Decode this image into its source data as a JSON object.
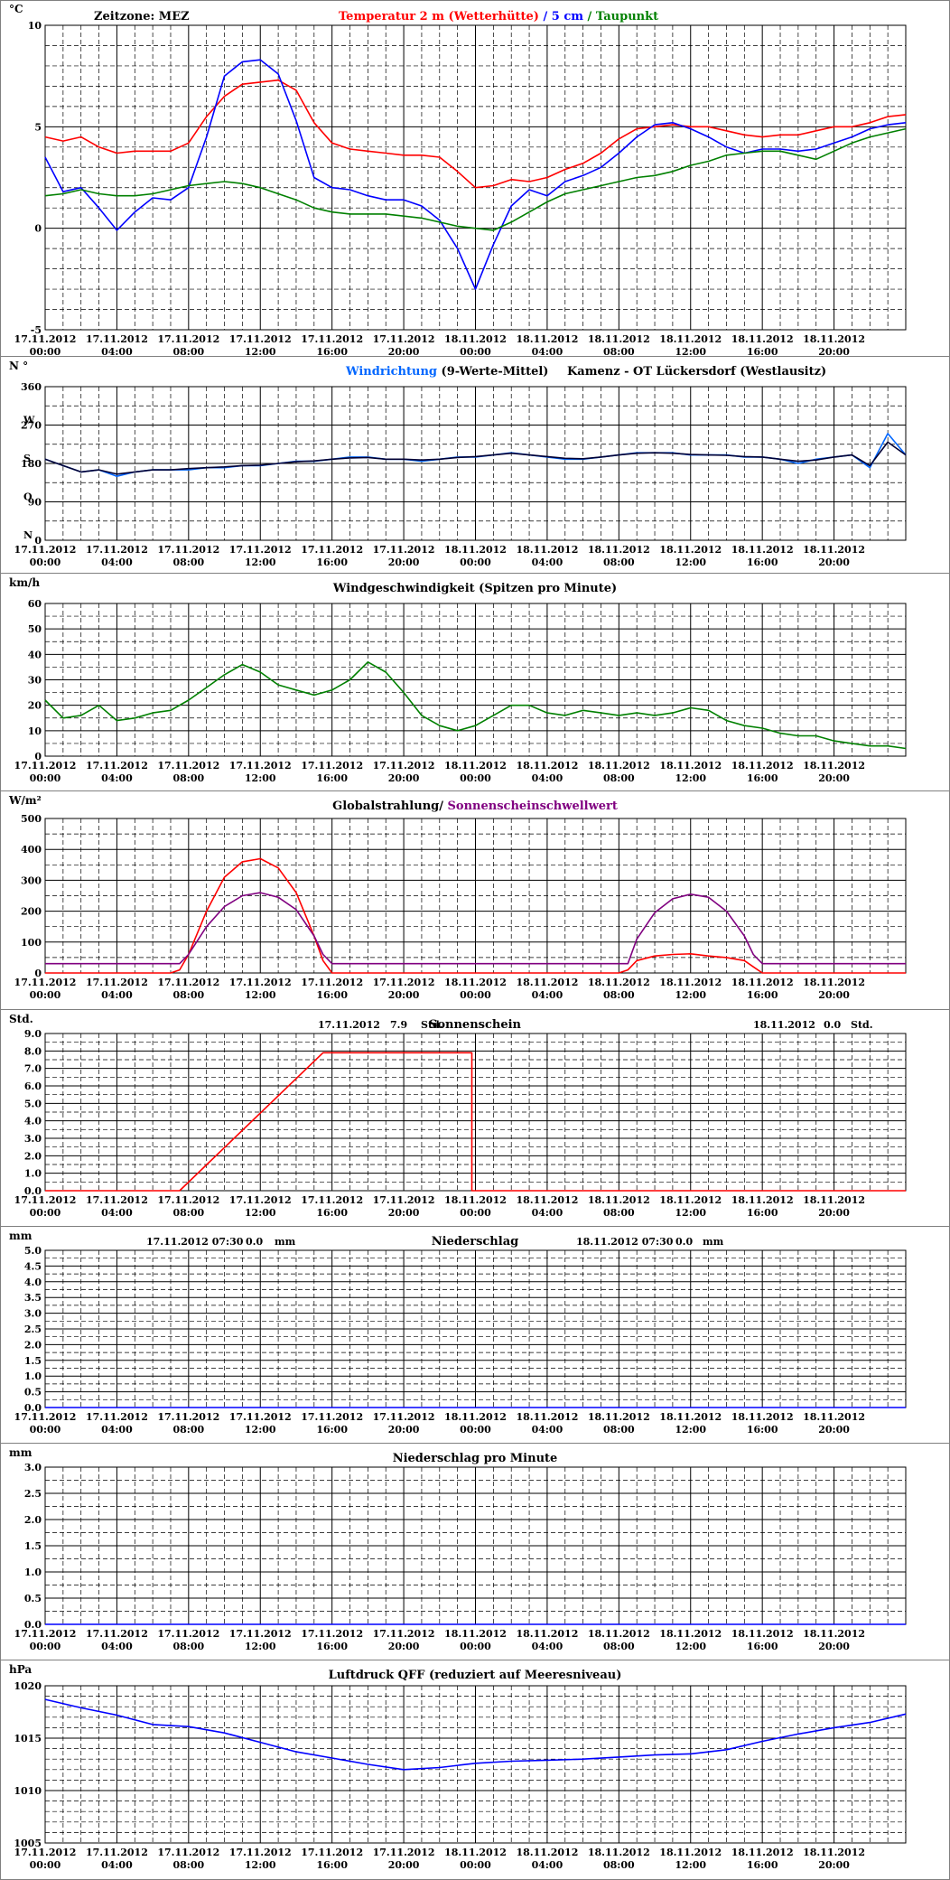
{
  "time_ticks": [
    [
      "17.11.2012",
      "00:00"
    ],
    [
      "17.11.2012",
      "04:00"
    ],
    [
      "17.11.2012",
      "08:00"
    ],
    [
      "17.11.2012",
      "12:00"
    ],
    [
      "17.11.2012",
      "16:00"
    ],
    [
      "17.11.2012",
      "20:00"
    ],
    [
      "18.11.2012",
      "00:00"
    ],
    [
      "18.11.2012",
      "04:00"
    ],
    [
      "18.11.2012",
      "08:00"
    ],
    [
      "18.11.2012",
      "12:00"
    ],
    [
      "18.11.2012",
      "16:00"
    ],
    [
      "18.11.2012",
      "20:00"
    ]
  ],
  "chart_data": [
    {
      "id": "temperature",
      "type": "line",
      "unit": "°C",
      "header_left": "Zeitzone: MEZ",
      "title_parts": [
        {
          "text": "Temperatur 2 m (Wetterhütte)",
          "color": "#ff0000"
        },
        {
          "text": "  /  ",
          "color": "#0000ff"
        },
        {
          "text": "5 cm",
          "color": "#0000ff"
        },
        {
          "text": " / ",
          "color": "#008000"
        },
        {
          "text": "Taupunkt",
          "color": "#008000"
        }
      ],
      "ylim": [
        -5,
        10
      ],
      "y_ticks": [
        -5,
        0,
        5,
        10
      ],
      "x_hours_range": [
        0,
        48
      ],
      "series": [
        {
          "name": "Temperatur 2 m (Wetterhütte)",
          "color": "#ff0000",
          "x": [
            0,
            1,
            2,
            3,
            4,
            5,
            6,
            7,
            8,
            9,
            10,
            11,
            12,
            13,
            14,
            15,
            16,
            17,
            18,
            19,
            20,
            21,
            22,
            23,
            24,
            25,
            26,
            27,
            28,
            29,
            30,
            31,
            32,
            33,
            34,
            35,
            36,
            37,
            38,
            39,
            40,
            41,
            42,
            43,
            44,
            45,
            46,
            47,
            48
          ],
          "values": [
            4.5,
            4.3,
            4.5,
            4.0,
            3.7,
            3.8,
            3.8,
            3.8,
            4.2,
            5.5,
            6.5,
            7.1,
            7.2,
            7.3,
            6.8,
            5.2,
            4.2,
            3.9,
            3.8,
            3.7,
            3.6,
            3.6,
            3.5,
            2.8,
            2.0,
            2.1,
            2.4,
            2.3,
            2.5,
            2.9,
            3.2,
            3.7,
            4.4,
            4.9,
            5.0,
            5.1,
            5.0,
            5.0,
            4.8,
            4.6,
            4.5,
            4.6,
            4.6,
            4.8,
            5.0,
            5.0,
            5.2,
            5.5,
            5.6
          ]
        },
        {
          "name": "5 cm",
          "color": "#0000ff",
          "x": [
            0,
            1,
            2,
            3,
            4,
            5,
            6,
            7,
            8,
            9,
            10,
            11,
            12,
            13,
            14,
            15,
            16,
            17,
            18,
            19,
            20,
            21,
            22,
            23,
            24,
            25,
            26,
            27,
            28,
            29,
            30,
            31,
            32,
            33,
            34,
            35,
            36,
            37,
            38,
            39,
            40,
            41,
            42,
            43,
            44,
            45,
            46,
            47,
            48
          ],
          "values": [
            3.5,
            1.8,
            2.0,
            1.0,
            -0.1,
            0.8,
            1.5,
            1.4,
            2.0,
            4.5,
            7.5,
            8.2,
            8.3,
            7.6,
            5.3,
            2.5,
            2.0,
            1.9,
            1.6,
            1.4,
            1.4,
            1.1,
            0.4,
            -1.0,
            -3.0,
            -0.8,
            1.1,
            1.9,
            1.6,
            2.3,
            2.6,
            3.0,
            3.7,
            4.5,
            5.1,
            5.2,
            4.9,
            4.5,
            4.0,
            3.7,
            3.9,
            3.9,
            3.8,
            3.9,
            4.2,
            4.5,
            4.9,
            5.1,
            5.2
          ]
        },
        {
          "name": "Taupunkt",
          "color": "#008000",
          "x": [
            0,
            1,
            2,
            3,
            4,
            5,
            6,
            7,
            8,
            9,
            10,
            11,
            12,
            13,
            14,
            15,
            16,
            17,
            18,
            19,
            20,
            21,
            22,
            23,
            24,
            25,
            26,
            27,
            28,
            29,
            30,
            31,
            32,
            33,
            34,
            35,
            36,
            37,
            38,
            39,
            40,
            41,
            42,
            43,
            44,
            45,
            46,
            47,
            48
          ],
          "values": [
            1.6,
            1.7,
            1.9,
            1.7,
            1.6,
            1.6,
            1.7,
            1.9,
            2.1,
            2.2,
            2.3,
            2.2,
            2.0,
            1.7,
            1.4,
            1.0,
            0.8,
            0.7,
            0.7,
            0.7,
            0.6,
            0.5,
            0.3,
            0.1,
            0.0,
            -0.1,
            0.3,
            0.8,
            1.3,
            1.7,
            1.9,
            2.1,
            2.3,
            2.5,
            2.6,
            2.8,
            3.1,
            3.3,
            3.6,
            3.7,
            3.8,
            3.8,
            3.6,
            3.4,
            3.8,
            4.2,
            4.5,
            4.7,
            4.9
          ]
        }
      ]
    },
    {
      "id": "wind_direction",
      "type": "line",
      "unit": "N °",
      "title_parts": [
        {
          "text": "Windrichtung",
          "color": "#0066ff"
        },
        {
          "text": " (9-Werte-Mittel)",
          "color": "#000000"
        }
      ],
      "title_right": "Kamenz - OT Lückersdorf (Westlausitz)",
      "ylim": [
        0,
        360
      ],
      "y_ticks": [
        0,
        90,
        180,
        270,
        360
      ],
      "compass_labels": [
        {
          "text": "W",
          "value": 270
        },
        {
          "text": "S",
          "value": 180
        },
        {
          "text": "O",
          "value": 90
        },
        {
          "text": "N",
          "value": 0
        }
      ],
      "x_hours_range": [
        0,
        48
      ],
      "series": [
        {
          "name": "Windrichtung",
          "color": "#0066ff",
          "x": [
            0,
            1,
            2,
            3,
            4,
            5,
            6,
            7,
            8,
            9,
            10,
            11,
            12,
            13,
            14,
            15,
            16,
            17,
            18,
            19,
            20,
            21,
            22,
            23,
            24,
            25,
            26,
            27,
            28,
            29,
            30,
            31,
            32,
            33,
            34,
            35,
            36,
            37,
            38,
            39,
            40,
            41,
            42,
            43,
            44,
            45,
            46,
            47,
            48
          ],
          "values": [
            190,
            175,
            160,
            165,
            150,
            160,
            165,
            165,
            165,
            170,
            170,
            175,
            175,
            180,
            185,
            185,
            190,
            195,
            195,
            190,
            190,
            185,
            190,
            195,
            195,
            200,
            205,
            200,
            195,
            190,
            190,
            195,
            200,
            205,
            205,
            205,
            200,
            200,
            200,
            195,
            195,
            190,
            180,
            190,
            195,
            200,
            170,
            250,
            200
          ]
        },
        {
          "name": "9-Werte-Mittel",
          "color": "#000033",
          "x": [
            0,
            1,
            2,
            3,
            4,
            5,
            6,
            7,
            8,
            9,
            10,
            11,
            12,
            13,
            14,
            15,
            16,
            17,
            18,
            19,
            20,
            21,
            22,
            23,
            24,
            25,
            26,
            27,
            28,
            29,
            30,
            31,
            32,
            33,
            34,
            35,
            36,
            37,
            38,
            39,
            40,
            41,
            42,
            43,
            44,
            45,
            46,
            47,
            48
          ],
          "values": [
            190,
            175,
            160,
            165,
            155,
            160,
            165,
            165,
            168,
            170,
            172,
            175,
            176,
            180,
            184,
            186,
            190,
            193,
            194,
            190,
            190,
            188,
            190,
            194,
            196,
            200,
            204,
            200,
            196,
            192,
            191,
            195,
            200,
            204,
            205,
            204,
            201,
            200,
            199,
            196,
            195,
            190,
            185,
            188,
            195,
            200,
            175,
            230,
            200
          ]
        }
      ]
    },
    {
      "id": "wind_speed",
      "type": "line",
      "unit": "km/h",
      "title_parts": [
        {
          "text": "Windgeschwindigkeit (Spitzen pro Minute)",
          "color": "#000000"
        }
      ],
      "ylim": [
        0,
        60
      ],
      "y_ticks": [
        0,
        10,
        20,
        30,
        40,
        50,
        60
      ],
      "x_hours_range": [
        0,
        48
      ],
      "series": [
        {
          "name": "Windgeschwindigkeit",
          "color": "#008000",
          "x": [
            0,
            1,
            2,
            3,
            4,
            5,
            6,
            7,
            8,
            9,
            10,
            11,
            12,
            13,
            14,
            15,
            16,
            17,
            18,
            19,
            20,
            21,
            22,
            23,
            24,
            25,
            26,
            27,
            28,
            29,
            30,
            31,
            32,
            33,
            34,
            35,
            36,
            37,
            38,
            39,
            40,
            41,
            42,
            43,
            44,
            45,
            46,
            47,
            48
          ],
          "values": [
            22,
            15,
            16,
            20,
            14,
            15,
            17,
            18,
            22,
            27,
            32,
            36,
            33,
            28,
            26,
            24,
            26,
            30,
            37,
            33,
            25,
            16,
            12,
            10,
            12,
            16,
            20,
            20,
            17,
            16,
            18,
            17,
            16,
            17,
            16,
            17,
            19,
            18,
            14,
            12,
            11,
            9,
            8,
            8,
            6,
            5,
            4,
            4,
            3
          ]
        }
      ]
    },
    {
      "id": "radiation",
      "type": "line",
      "unit": "W/m²",
      "title_parts": [
        {
          "text": "Globalstrahlung",
          "color": "#000000"
        },
        {
          "text": "/ ",
          "color": "#000000"
        },
        {
          "text": "Sonnenscheinschwellwert",
          "color": "#800080"
        }
      ],
      "ylim": [
        0,
        500
      ],
      "y_ticks": [
        0,
        100,
        200,
        300,
        400,
        500
      ],
      "x_hours_range": [
        0,
        48
      ],
      "series": [
        {
          "name": "Globalstrahlung",
          "color": "#ff0000",
          "x": [
            0,
            6,
            7,
            7.5,
            8,
            9,
            10,
            11,
            12,
            13,
            14,
            15,
            15.5,
            16,
            32,
            32.5,
            33,
            34,
            35,
            36,
            37,
            38,
            39,
            39.5,
            40,
            48
          ],
          "values": [
            0,
            0,
            0,
            10,
            60,
            200,
            310,
            360,
            370,
            340,
            260,
            120,
            40,
            0,
            0,
            10,
            40,
            55,
            60,
            62,
            55,
            50,
            40,
            20,
            0,
            0
          ]
        },
        {
          "name": "Sonnenscheinschwellwert",
          "color": "#800080",
          "x": [
            0,
            7.5,
            8,
            9,
            10,
            11,
            12,
            13,
            14,
            15,
            15.5,
            16,
            32,
            32.5,
            33,
            34,
            35,
            36,
            37,
            38,
            39,
            39.5,
            40,
            48
          ],
          "values": [
            30,
            30,
            60,
            150,
            215,
            250,
            260,
            245,
            205,
            120,
            60,
            30,
            30,
            30,
            110,
            195,
            240,
            255,
            245,
            200,
            120,
            60,
            30,
            30
          ]
        }
      ]
    },
    {
      "id": "sunshine",
      "type": "line",
      "unit": "Std.",
      "title_parts": [
        {
          "text": "Sonnenschein",
          "color": "#000000"
        }
      ],
      "annotations": [
        {
          "date": "17.11.2012",
          "value": "7.9",
          "unit": "Std."
        },
        {
          "date": "18.11.2012",
          "value": "0.0",
          "unit": "Std."
        }
      ],
      "ylim": [
        0,
        9
      ],
      "y_ticks": [
        0.0,
        1.0,
        2.0,
        3.0,
        4.0,
        5.0,
        6.0,
        7.0,
        8.0,
        9.0
      ],
      "x_hours_range": [
        0,
        48
      ],
      "series": [
        {
          "name": "Sonnenschein",
          "color": "#ff0000",
          "x": [
            0,
            7.5,
            15.5,
            23.8,
            23.8,
            48
          ],
          "values": [
            0,
            0,
            7.9,
            7.9,
            0,
            0
          ]
        }
      ]
    },
    {
      "id": "precip",
      "type": "line",
      "unit": "mm",
      "title_parts": [
        {
          "text": "Niederschlag",
          "color": "#000000"
        }
      ],
      "annotations": [
        {
          "date": "17.11.2012 07:30",
          "value": "0.0",
          "unit": "mm"
        },
        {
          "date": "18.11.2012 07:30",
          "value": "0.0",
          "unit": "mm"
        }
      ],
      "ylim": [
        0,
        5
      ],
      "y_ticks": [
        0.0,
        0.5,
        1.0,
        1.5,
        2.0,
        2.5,
        3.0,
        3.5,
        4.0,
        4.5,
        5.0
      ],
      "x_hours_range": [
        0,
        48
      ],
      "series": [
        {
          "name": "Niederschlag",
          "color": "#0000ff",
          "x": [
            0,
            48
          ],
          "values": [
            0,
            0
          ]
        }
      ]
    },
    {
      "id": "precip_min",
      "type": "line",
      "unit": "mm",
      "title_parts": [
        {
          "text": "Niederschlag pro Minute",
          "color": "#000000"
        }
      ],
      "ylim": [
        0,
        3
      ],
      "y_ticks": [
        0.0,
        0.5,
        1.0,
        1.5,
        2.0,
        2.5,
        3.0
      ],
      "x_hours_range": [
        0,
        48
      ],
      "series": [
        {
          "name": "Niederschlag pro Minute",
          "color": "#0000ff",
          "x": [
            0,
            48
          ],
          "values": [
            0,
            0
          ]
        }
      ]
    },
    {
      "id": "pressure",
      "type": "line",
      "unit": "hPa",
      "title_parts": [
        {
          "text": "Luftdruck QFF (reduziert auf Meeresniveau)",
          "color": "#000000"
        }
      ],
      "ylim": [
        1005,
        1020
      ],
      "y_ticks": [
        1005,
        1010,
        1015,
        1020
      ],
      "x_hours_range": [
        0,
        48
      ],
      "series": [
        {
          "name": "Luftdruck QFF",
          "color": "#0000ff",
          "x": [
            0,
            2,
            4,
            6,
            8,
            10,
            12,
            14,
            16,
            18,
            20,
            22,
            24,
            26,
            28,
            30,
            32,
            34,
            36,
            38,
            40,
            42,
            44,
            46,
            48
          ],
          "values": [
            1018.7,
            1017.9,
            1017.2,
            1016.3,
            1016.1,
            1015.5,
            1014.6,
            1013.7,
            1013.1,
            1012.5,
            1012.0,
            1012.2,
            1012.6,
            1012.8,
            1012.9,
            1013.0,
            1013.2,
            1013.4,
            1013.5,
            1013.9,
            1014.7,
            1015.4,
            1016.0,
            1016.5,
            1017.3
          ]
        }
      ]
    }
  ]
}
